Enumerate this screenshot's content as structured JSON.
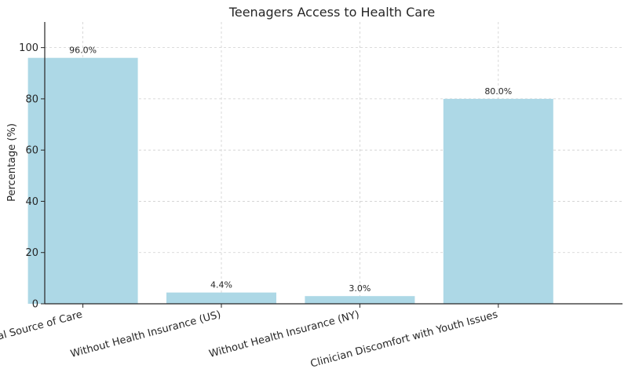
{
  "chart_data": {
    "type": "bar",
    "title": "Teenagers Access to Health Care",
    "xlabel": "",
    "ylabel": "Percentage (%)",
    "categories": [
      "Usual Source of Care",
      "Without Health Insurance (US)",
      "Without Health Insurance (NY)",
      "Clinician Discomfort with Youth Issues"
    ],
    "values": [
      96.0,
      4.4,
      3.0,
      80.0
    ],
    "data_labels": [
      "96.0%",
      "4.4%",
      "3.0%",
      "80.0%"
    ],
    "ylim": [
      0,
      110
    ],
    "yticks": [
      0,
      20,
      40,
      60,
      80,
      100
    ],
    "bar_color": "#add8e6",
    "grid": true
  }
}
